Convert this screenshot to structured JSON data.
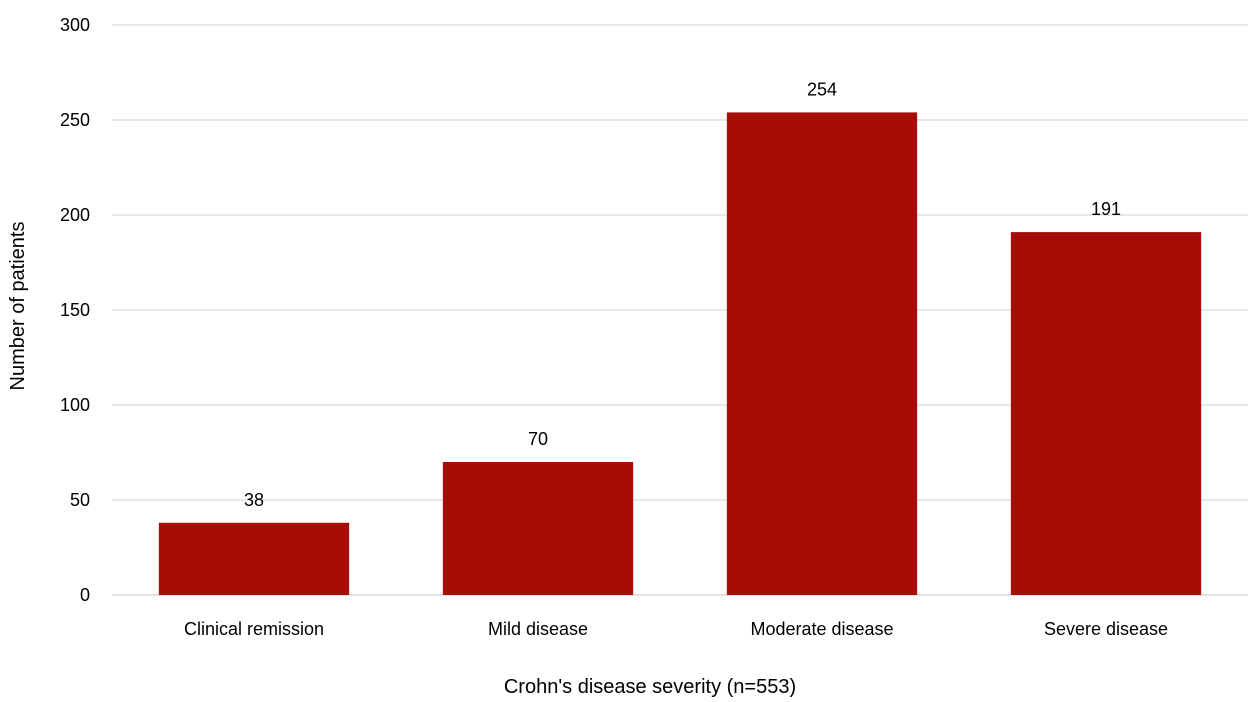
{
  "chart_data": {
    "type": "bar",
    "title": "",
    "xlabel": "Crohn's disease severity (n=553)",
    "ylabel": "Number of patients",
    "categories": [
      "Clinical remission",
      "Mild disease",
      "Moderate disease",
      "Severe disease"
    ],
    "values": [
      38,
      70,
      254,
      191
    ],
    "data_labels": [
      "38",
      "70",
      "254",
      "191"
    ],
    "ylim": [
      0,
      300
    ],
    "yticks": [
      0,
      50,
      100,
      150,
      200,
      250,
      300
    ],
    "grid": true,
    "legend": "none",
    "bar_color": "#a50d06",
    "grid_color": "#d9d9d9"
  }
}
